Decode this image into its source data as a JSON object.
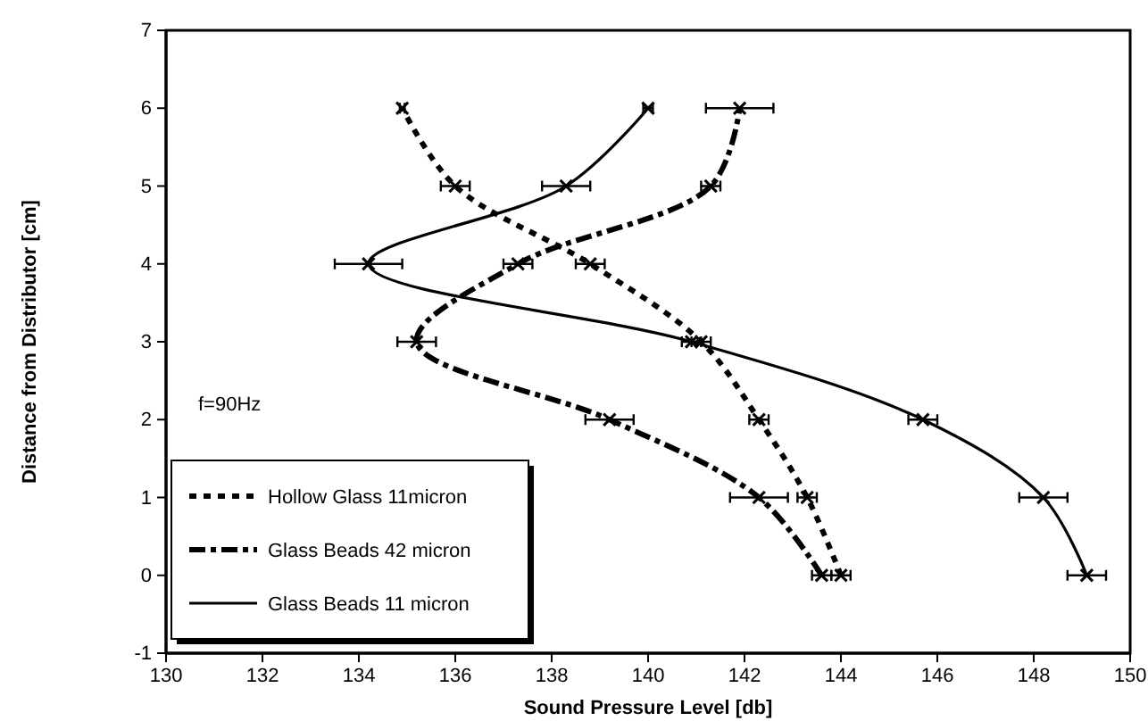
{
  "chart_data": {
    "type": "line",
    "xlabel": "Sound Pressure Level [db]",
    "ylabel": "Distance from Distributor [cm]",
    "xlim": [
      130,
      150
    ],
    "xticks": [
      130,
      132,
      134,
      136,
      138,
      140,
      142,
      144,
      146,
      148,
      150
    ],
    "ylim": [
      -1,
      7
    ],
    "yticks": [
      -1,
      0,
      1,
      2,
      3,
      4,
      5,
      6,
      7
    ],
    "annotations": [
      "f=90Hz"
    ],
    "legend": "bottom left",
    "marker": "cross",
    "grid": false,
    "series": [
      {
        "name": "Hollow Glass 11micron",
        "color": "#000000",
        "line_style": "dotted",
        "x": [
          144.0,
          143.3,
          142.3,
          141.1,
          138.8,
          136.0,
          134.9
        ],
        "values": [
          0,
          1,
          2,
          3,
          4,
          5,
          6
        ],
        "xerrors": [
          0.2,
          0.2,
          0.2,
          0.2,
          0.3,
          0.3,
          0.05
        ]
      },
      {
        "name": "Glass Beads 42 micron",
        "color": "#000000",
        "line_style": "dashed",
        "x": [
          143.6,
          142.3,
          139.2,
          135.2,
          137.3,
          141.3,
          141.9
        ],
        "values": [
          0,
          1,
          2,
          3,
          4,
          5,
          6
        ],
        "xerrors": [
          0.2,
          0.6,
          0.5,
          0.4,
          0.3,
          0.2,
          0.7
        ]
      },
      {
        "name": "Glass Beads 11 micron",
        "color": "#000000",
        "line_style": "solid",
        "x": [
          149.1,
          148.2,
          145.7,
          140.9,
          134.2,
          138.3,
          140.0
        ],
        "values": [
          0,
          1,
          2,
          3,
          4,
          5,
          6
        ],
        "xerrors": [
          0.4,
          0.5,
          0.3,
          0.2,
          0.7,
          0.5,
          0.1
        ]
      }
    ]
  }
}
